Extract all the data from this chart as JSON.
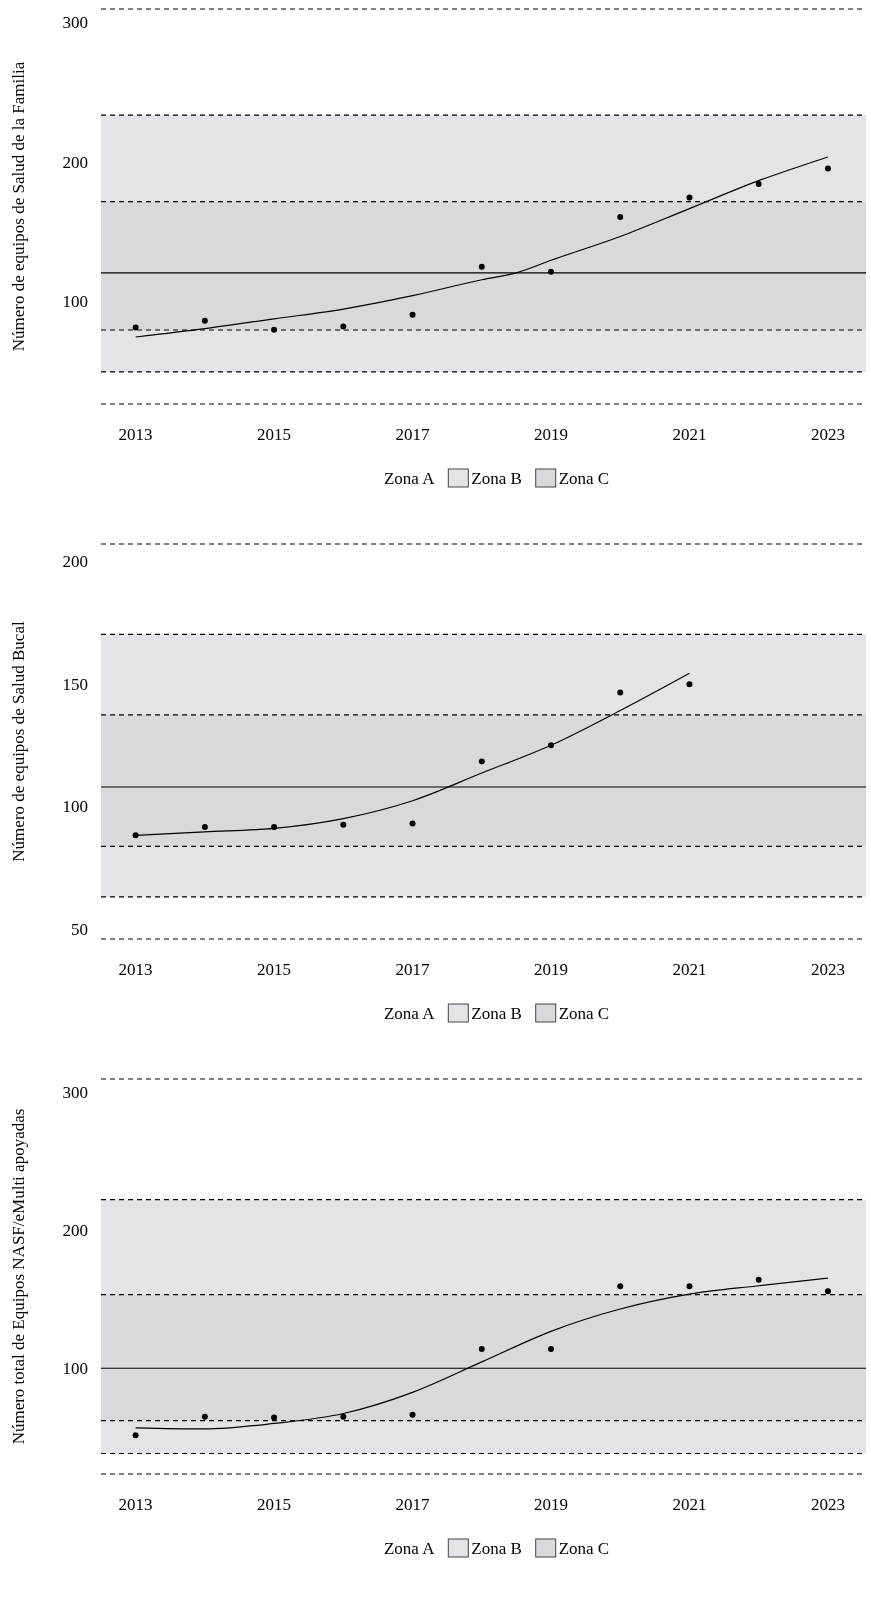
{
  "chart_data": [
    {
      "type": "scatter",
      "ylabel": "Número de equipos de Salud de la Familia",
      "xlim": [
        2012.5,
        2023.55
      ],
      "xticks": [
        2013,
        2015,
        2017,
        2019,
        2021,
        2023
      ],
      "ylim": [
        28,
        311
      ],
      "annotations": [
        "Zona A"
      ],
      "yticks": [
        100,
        200,
        300
      ],
      "grid": false,
      "legend": "bottom",
      "series": [
        {
          "type": "scatter",
          "color": "#000000",
          "marker": "circle",
          "x": [
            2013,
            2014,
            2015,
            2016,
            2017,
            2018,
            2019,
            2020,
            2021,
            2022,
            2023
          ],
          "values": [
            82.8,
            87.6,
            81.2,
            83.6,
            92,
            126.4,
            122.8,
            162,
            176,
            185.6,
            196.8
          ]
        },
        {
          "type": "line",
          "color": "#000000",
          "marker": "none",
          "line_style": "solid",
          "x": [
            2013,
            2014,
            2015,
            2016,
            2017,
            2018,
            2018.5,
            2019,
            2020,
            2021,
            2022,
            2023
          ],
          "values": [
            76,
            82,
            89,
            96,
            105.6,
            117,
            122,
            131,
            148,
            168,
            188,
            205
          ]
        }
      ],
      "bands": [
        {
          "axis": "y",
          "from": 51,
          "to": 235,
          "label": "Zona B",
          "color": "#e3e4e8"
        },
        {
          "axis": "y",
          "from": 81,
          "to": 173,
          "label": "Zona C",
          "color": "#d8d9dd"
        }
      ],
      "ref_lines": [
        {
          "axis": "y",
          "value": 122,
          "line_style": "solid"
        },
        {
          "axis": "y",
          "value": 311,
          "line_style": "dashed"
        },
        {
          "axis": "y",
          "value": 235,
          "line_style": "dashed"
        },
        {
          "axis": "y",
          "value": 173,
          "line_style": "dashed"
        },
        {
          "axis": "y",
          "value": 81,
          "line_style": "dashed"
        },
        {
          "axis": "y",
          "value": 51,
          "line_style": "dashed"
        },
        {
          "axis": "y",
          "value": 28,
          "line_style": "dashed"
        }
      ]
    },
    {
      "type": "scatter",
      "ylabel": "Número de equipos de Salud Bucal",
      "xlim": [
        2012.5,
        2023.55
      ],
      "xticks": [
        2013,
        2015,
        2017,
        2019,
        2021,
        2023
      ],
      "ylim": [
        46.8,
        207.9
      ],
      "annotations": [
        "Zona A"
      ],
      "yticks": [
        50,
        100,
        150,
        200
      ],
      "grid": false,
      "legend": "bottom",
      "series": [
        {
          "type": "scatter",
          "color": "#000000",
          "marker": "circle",
          "x": [
            2013,
            2014,
            2015,
            2016,
            2017,
            2018,
            2019,
            2020,
            2021
          ],
          "values": [
            89.1,
            92.5,
            92.5,
            93.4,
            93.9,
            119.2,
            125.8,
            147.3,
            150.7
          ]
        },
        {
          "type": "line",
          "color": "#000000",
          "marker": "none",
          "line_style": "solid",
          "x": [
            2013,
            2014,
            2015,
            2016,
            2017,
            2018,
            2019,
            2020,
            2021
          ],
          "values": [
            89.1,
            90.5,
            91.9,
            95.9,
            103.2,
            114.5,
            125.8,
            140,
            155.2
          ]
        }
      ],
      "bands": [
        {
          "axis": "y",
          "from": 64,
          "to": 171,
          "label": "Zona B",
          "color": "#e3e4e8"
        },
        {
          "axis": "y",
          "from": 84.6,
          "to": 138.2,
          "label": "Zona C",
          "color": "#d8d9dd"
        }
      ],
      "ref_lines": [
        {
          "axis": "y",
          "value": 108.8,
          "line_style": "solid"
        },
        {
          "axis": "y",
          "value": 207.9,
          "line_style": "dashed"
        },
        {
          "axis": "y",
          "value": 171,
          "line_style": "dashed"
        },
        {
          "axis": "y",
          "value": 138.2,
          "line_style": "dashed"
        },
        {
          "axis": "y",
          "value": 84.6,
          "line_style": "dashed"
        },
        {
          "axis": "y",
          "value": 64,
          "line_style": "dashed"
        },
        {
          "axis": "y",
          "value": 46.8,
          "line_style": "dashed"
        }
      ]
    },
    {
      "type": "scatter",
      "ylabel": "Número total de Equipos NASF/eMulti apoyadas",
      "xlim": [
        2012.5,
        2023.55
      ],
      "xticks": [
        2013,
        2015,
        2017,
        2019,
        2021,
        2023
      ],
      "ylim": [
        24.2,
        311
      ],
      "annotations": [
        "Zona A"
      ],
      "yticks": [
        100,
        200,
        300
      ],
      "grid": false,
      "legend": "bottom",
      "series": [
        {
          "type": "scatter",
          "color": "#000000",
          "marker": "circle",
          "x": [
            2013,
            2014,
            2015,
            2016,
            2017,
            2018,
            2019,
            2020,
            2021,
            2022,
            2023
          ],
          "values": [
            52.4,
            65.7,
            65.3,
            65.7,
            67.3,
            114.9,
            114.9,
            160.5,
            160.5,
            165.3,
            156.9
          ]
        },
        {
          "type": "line",
          "color": "#000000",
          "marker": "none",
          "line_style": "solid",
          "x": [
            2013,
            2014,
            2015,
            2016,
            2017,
            2018,
            2019,
            2020,
            2021,
            2022,
            2023
          ],
          "values": [
            57.7,
            56.9,
            60.9,
            68.1,
            83.5,
            105.6,
            127.8,
            144,
            154.8,
            160.9,
            166.5
          ]
        }
      ],
      "bands": [
        {
          "axis": "y",
          "from": 39.1,
          "to": 223.4,
          "label": "Zona B",
          "color": "#e3e4e8"
        },
        {
          "axis": "y",
          "from": 62.9,
          "to": 154.4,
          "label": "Zona C",
          "color": "#d8d9dd"
        }
      ],
      "ref_lines": [
        {
          "axis": "y",
          "value": 101,
          "line_style": "solid"
        },
        {
          "axis": "y",
          "value": 311,
          "line_style": "dashed"
        },
        {
          "axis": "y",
          "value": 223.4,
          "line_style": "dashed"
        },
        {
          "axis": "y",
          "value": 154.4,
          "line_style": "dashed"
        },
        {
          "axis": "y",
          "value": 62.9,
          "line_style": "dashed"
        },
        {
          "axis": "y",
          "value": 39.1,
          "line_style": "dashed"
        },
        {
          "axis": "y",
          "value": 24.2,
          "line_style": "dashed"
        }
      ]
    }
  ]
}
